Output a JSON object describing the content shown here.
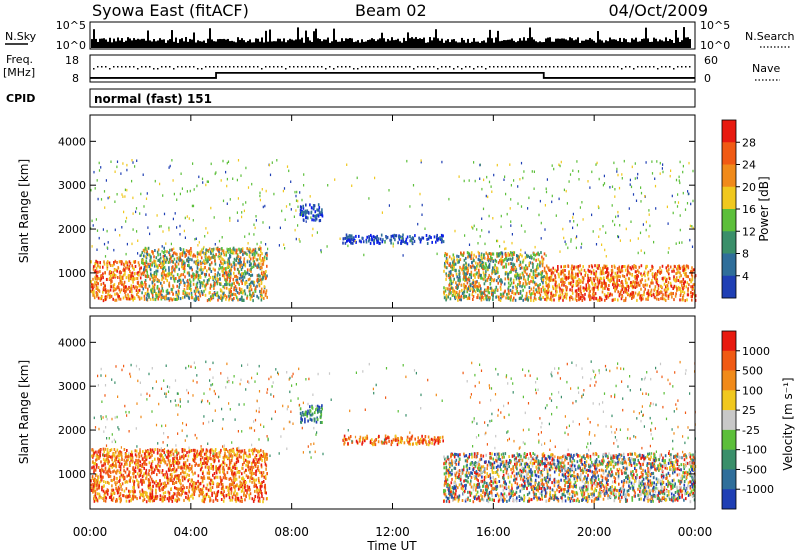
{
  "header": {
    "station": "Syowa East (fitACF)",
    "beam": "Beam 02",
    "date": "04/Oct/2009"
  },
  "strip_noise": {
    "left_label": "N.Sky",
    "left_ticks": [
      "10^5",
      "10^0"
    ],
    "right_label": "N.Search",
    "right_ticks": [
      "10^5",
      "10^0"
    ]
  },
  "strip_freq": {
    "left_label_1": "Freq.",
    "left_label_2": "[MHz]",
    "left_ticks": [
      "18",
      "8"
    ],
    "right_label": "Nave",
    "right_ticks": [
      "60",
      "0"
    ]
  },
  "cpid": {
    "label": "CPID",
    "value": "normal (fast) 151"
  },
  "colors": {
    "power_scale": [
      "#0a1ee6",
      "#1f3fb4",
      "#2f6e9a",
      "#3a8f6a",
      "#5cbf3a",
      "#f0c81e",
      "#f08a1a",
      "#f05a14",
      "#e81a10"
    ],
    "velocity_scale": [
      "#e81a10",
      "#f05a14",
      "#f08a1a",
      "#f0c81e",
      "#c8c8c8",
      "#5cbf3a",
      "#3a8f6a",
      "#2f6e9a",
      "#1f3fb4"
    ]
  },
  "chart_data": [
    {
      "type": "heatmap",
      "panel": "power",
      "xlabel": "",
      "ylabel": "Slant Range [km]",
      "xlim": [
        "00:00",
        "24:00"
      ],
      "ylim": [
        200,
        4600
      ],
      "yticks": [
        "1000",
        "2000",
        "3000",
        "4000"
      ],
      "colorbar": {
        "label": "Power [dB]",
        "ticks": [
          "28",
          "24",
          "20",
          "16",
          "12",
          "8",
          "4"
        ]
      },
      "echo_regions": [
        {
          "t_start": 0.0,
          "t_end": 2.0,
          "r_min": 400,
          "r_max": 1300,
          "level": "high"
        },
        {
          "t_start": 2.0,
          "t_end": 7.0,
          "r_min": 400,
          "r_max": 1600,
          "level": "medium"
        },
        {
          "t_start": 8.3,
          "t_end": 9.2,
          "r_min": 2200,
          "r_max": 2600,
          "level": "low"
        },
        {
          "t_start": 10.0,
          "t_end": 14.0,
          "r_min": 1700,
          "r_max": 1900,
          "level": "low"
        },
        {
          "t_start": 14.0,
          "t_end": 18.0,
          "r_min": 400,
          "r_max": 1500,
          "level": "medium"
        },
        {
          "t_start": 18.0,
          "t_end": 24.0,
          "r_min": 400,
          "r_max": 1200,
          "level": "high"
        }
      ]
    },
    {
      "type": "heatmap",
      "panel": "velocity",
      "xlabel": "Time UT",
      "ylabel": "Slant Range [km]",
      "xlim": [
        "00:00",
        "24:00"
      ],
      "ylim": [
        200,
        4600
      ],
      "xticks": [
        "00:00",
        "04:00",
        "08:00",
        "12:00",
        "16:00",
        "20:00",
        "00:00"
      ],
      "yticks": [
        "1000",
        "2000",
        "3000",
        "4000"
      ],
      "colorbar": {
        "label": "Velocity [m s⁻¹]",
        "ticks": [
          "1000",
          "500",
          "100",
          "25",
          "-25",
          "-100",
          "-500",
          "-1000"
        ]
      },
      "echo_regions": [
        {
          "t_start": 0.0,
          "t_end": 7.0,
          "r_min": 400,
          "r_max": 1600,
          "direction": "away"
        },
        {
          "t_start": 8.3,
          "t_end": 9.2,
          "r_min": 2200,
          "r_max": 2600,
          "direction": "toward"
        },
        {
          "t_start": 10.0,
          "t_end": 14.0,
          "r_min": 1700,
          "r_max": 1900,
          "direction": "away"
        },
        {
          "t_start": 14.0,
          "t_end": 24.0,
          "r_min": 400,
          "r_max": 1500,
          "direction": "mixed"
        }
      ]
    }
  ]
}
